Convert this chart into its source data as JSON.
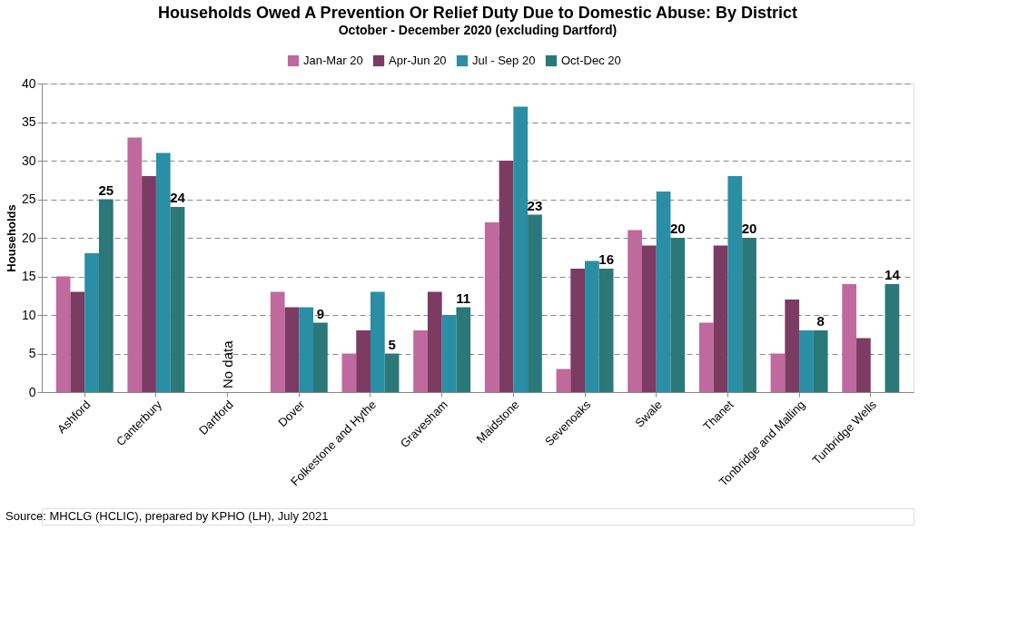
{
  "chart_data": {
    "type": "bar",
    "title": "Households Owed A Prevention Or Relief Duty Due to Domestic Abuse: By District",
    "subtitle": "October - December 2020 (excluding Dartford)",
    "ylabel": "Households",
    "categories": [
      "Ashford",
      "Canterbury",
      "Dartford",
      "Dover",
      "Folkestone and Hythe",
      "Gravesham",
      "Maidstone",
      "Sevenoaks",
      "Swale",
      "Thanet",
      "Tonbridge and Malling",
      "Tunbridge Wells"
    ],
    "series": [
      {
        "name": "Jan-Mar 20",
        "color": "#c0699e",
        "values": [
          15,
          33,
          null,
          13,
          5,
          8,
          22,
          3,
          21,
          9,
          5,
          14
        ]
      },
      {
        "name": "Apr-Jun 20",
        "color": "#7b3b62",
        "values": [
          13,
          28,
          null,
          11,
          8,
          13,
          30,
          16,
          19,
          19,
          12,
          7
        ]
      },
      {
        "name": "Jul - Sep 20",
        "color": "#2a8ea5",
        "values": [
          18,
          31,
          null,
          11,
          13,
          10,
          37,
          17,
          26,
          28,
          8,
          null
        ]
      },
      {
        "name": "Oct-Dec 20",
        "color": "#2a7878",
        "values": [
          25,
          24,
          null,
          9,
          5,
          11,
          23,
          16,
          20,
          20,
          8,
          14
        ],
        "value_labels": [
          "25",
          "24",
          null,
          "9",
          "5",
          "11",
          "23",
          "16",
          "20",
          "20",
          "8",
          "14"
        ]
      }
    ],
    "ylim": [
      0,
      40
    ],
    "yticks": [
      0,
      5,
      10,
      15,
      20,
      25,
      30,
      35,
      40
    ],
    "grid": "y",
    "legend": "top",
    "annotations": [
      "No data",
      "Source: MHCLG (HCLIC), prepared by KPHO (LH), July 2021"
    ]
  }
}
